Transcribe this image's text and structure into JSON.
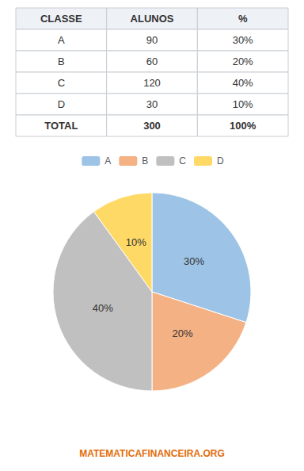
{
  "chart_data": {
    "type": "pie",
    "categories": [
      "A",
      "B",
      "C",
      "D"
    ],
    "values": [
      30,
      20,
      40,
      10
    ],
    "value_labels": [
      "30%",
      "20%",
      "40%",
      "10%"
    ],
    "colors": [
      "#9DC3E6",
      "#F4B183",
      "#C0C0C0",
      "#FFD966"
    ],
    "data_labels": true,
    "legend": "top",
    "annotations": [
      "MATEMATICAFINANCEIRA.ORG"
    ],
    "table": {
      "header": [
        "CLASSE",
        "ALUNOS",
        "%"
      ],
      "rows": [
        [
          "A",
          "90",
          "30%"
        ],
        [
          "B",
          "60",
          "20%"
        ],
        [
          "C",
          "120",
          "40%"
        ],
        [
          "D",
          "30",
          "10%"
        ],
        [
          "TOTAL",
          "300",
          "100%"
        ]
      ]
    }
  }
}
